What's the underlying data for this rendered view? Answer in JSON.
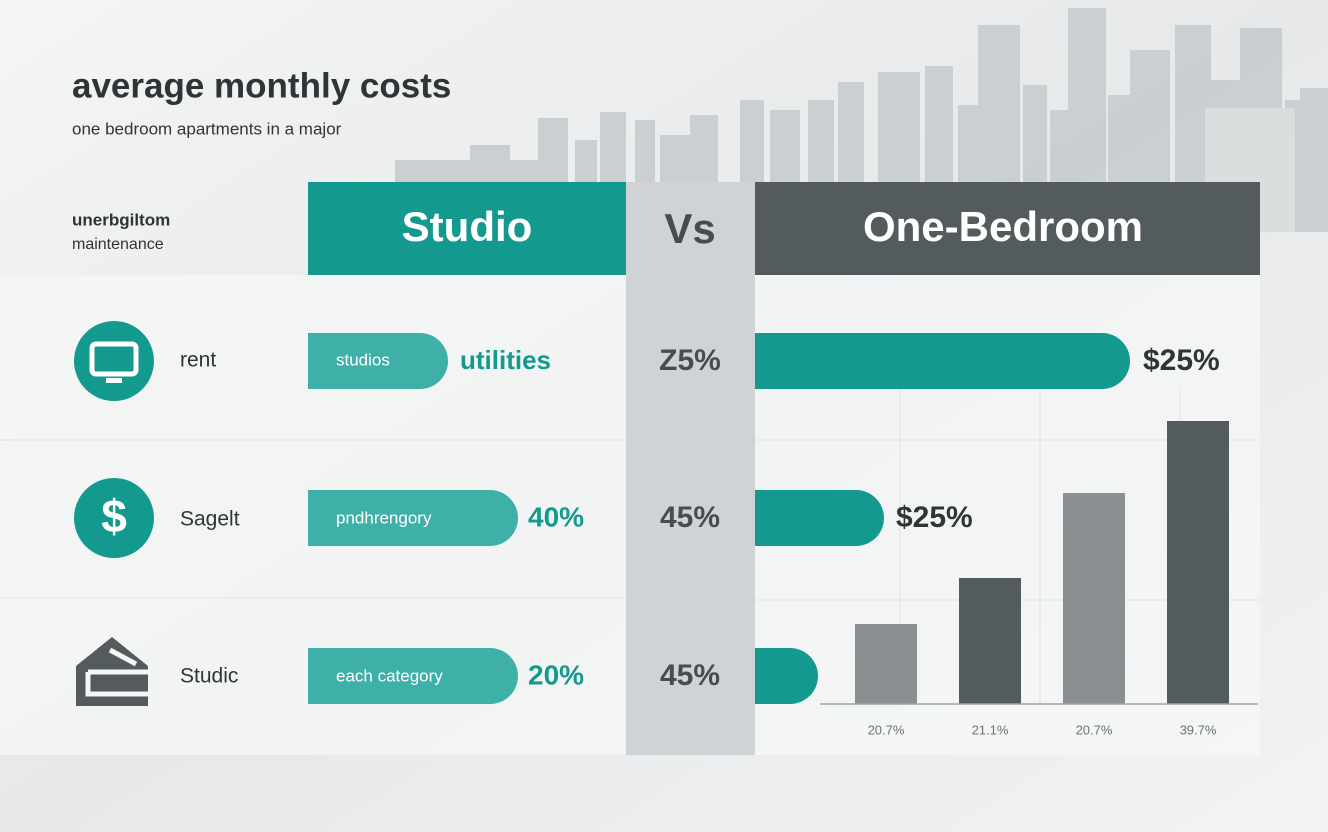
{
  "header": {
    "title": "average monthly costs",
    "subtitle": "one bedroom apartments in a major"
  },
  "sidebar": {
    "heading": "unerbgiltom",
    "subheading": "maintenance"
  },
  "columns": {
    "left": "Studio",
    "middle": "Vs",
    "right": "One-Bedroom"
  },
  "rows": [
    {
      "label": "rent",
      "studio_bar_label": "studios",
      "studio_value": "utilities",
      "middle_value": "Z5%",
      "right_value": "$25%"
    },
    {
      "label": "Sagelt",
      "studio_bar_label": "pndhrengory",
      "studio_value": "40%",
      "middle_value": "45%",
      "right_value": "$25%"
    },
    {
      "label": "Studic",
      "studio_bar_label": "each category",
      "studio_value": "20%",
      "middle_value": "45%"
    }
  ],
  "mini_chart": {
    "labels": [
      "20.7%",
      "21.1%",
      "20.7%",
      "39.7%"
    ]
  }
}
